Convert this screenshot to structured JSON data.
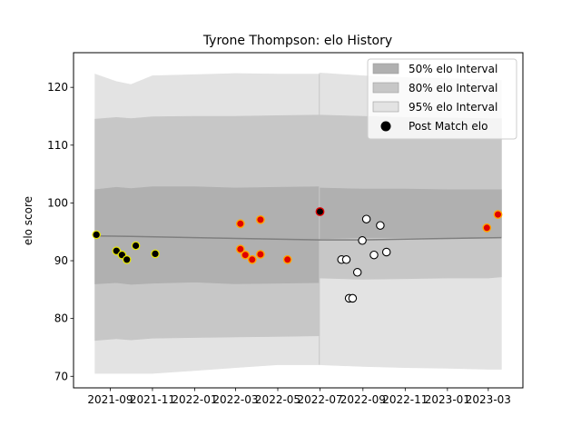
{
  "chart_data": {
    "type": "scatter",
    "title": "Tyrone Thompson: elo History",
    "xlabel": "",
    "ylabel": "elo score",
    "ylim": [
      68,
      126
    ],
    "yticks": [
      70,
      80,
      90,
      100,
      110,
      120
    ],
    "xlim": [
      "2021-07-10",
      "2023-04-20"
    ],
    "xticks": [
      {
        "date": "2021-09-01",
        "label": "2021-09"
      },
      {
        "date": "2021-11-01",
        "label": "2021-11"
      },
      {
        "date": "2022-01-01",
        "label": "2022-01"
      },
      {
        "date": "2022-03-01",
        "label": "2022-03"
      },
      {
        "date": "2022-05-01",
        "label": "2022-05"
      },
      {
        "date": "2022-07-01",
        "label": "2022-07"
      },
      {
        "date": "2022-09-01",
        "label": "2022-09"
      },
      {
        "date": "2022-11-01",
        "label": "2022-11"
      },
      {
        "date": "2023-01-01",
        "label": "2023-01"
      },
      {
        "date": "2023-03-01",
        "label": "2023-03"
      }
    ],
    "legend": {
      "placement": "top-right",
      "entries": [
        {
          "key": "p50",
          "label": "50% elo Interval"
        },
        {
          "key": "p80",
          "label": "80% elo Interval"
        },
        {
          "key": "p95",
          "label": "95% elo Interval"
        },
        {
          "key": "post",
          "label": "Post Match elo"
        }
      ]
    },
    "interval_bands": {
      "split_date": "2022-06-30",
      "before": {
        "dates": [
          "2021-08-10",
          "2021-09-10",
          "2021-10-01",
          "2021-11-01",
          "2022-01-01",
          "2022-03-01",
          "2022-05-01",
          "2022-06-30"
        ],
        "p95_upper": [
          122.3,
          121.0,
          120.5,
          122.0,
          122.2,
          122.4,
          122.3,
          122.3
        ],
        "p95_lower": [
          70.5,
          70.5,
          70.5,
          70.5,
          71.0,
          71.5,
          72.0,
          72.0
        ],
        "p80_upper": [
          114.5,
          114.8,
          114.6,
          114.9,
          115.0,
          115.0,
          115.1,
          115.2
        ],
        "p80_lower": [
          76.2,
          76.5,
          76.3,
          76.6,
          76.7,
          76.8,
          76.9,
          77.0
        ],
        "p50_upper": [
          102.3,
          102.7,
          102.5,
          102.8,
          102.8,
          102.6,
          102.7,
          102.8
        ],
        "p50_lower": [
          86.0,
          86.2,
          85.9,
          86.1,
          86.3,
          86.0,
          86.1,
          86.2
        ]
      },
      "after": {
        "dates": [
          "2022-06-30",
          "2022-09-01",
          "2022-11-01",
          "2023-01-01",
          "2023-03-01",
          "2023-03-20"
        ],
        "p95_upper": [
          122.5,
          122.0,
          121.7,
          121.5,
          121.3,
          121.2
        ],
        "p95_lower": [
          72.0,
          71.7,
          71.5,
          71.4,
          71.2,
          71.2
        ],
        "p80_upper": [
          115.2,
          115.0,
          114.8,
          114.7,
          114.6,
          114.6
        ],
        "p80_lower": [
          87.0,
          86.8,
          86.9,
          87.0,
          87.0,
          87.2
        ],
        "p50_upper": [
          102.6,
          102.4,
          102.4,
          102.3,
          102.3,
          102.3
        ],
        "p50_lower": [
          93.8,
          94.0,
          94.0,
          94.0,
          94.1,
          94.1
        ]
      }
    },
    "mean_line": {
      "dates": [
        "2021-08-10",
        "2021-10-01",
        "2022-01-01",
        "2022-04-01",
        "2022-06-30",
        "2022-09-01",
        "2022-12-01",
        "2023-03-20"
      ],
      "values": [
        94.3,
        94.2,
        94.0,
        93.8,
        93.6,
        93.6,
        93.8,
        94.0
      ]
    },
    "series": [
      {
        "name": "Post Match elo",
        "style": "yellow-edge-black",
        "points": [
          {
            "date": "2021-08-12",
            "value": 94.5
          },
          {
            "date": "2021-09-10",
            "value": 91.7
          },
          {
            "date": "2021-09-18",
            "value": 91.0
          },
          {
            "date": "2021-09-25",
            "value": 90.2
          },
          {
            "date": "2021-10-08",
            "value": 92.6
          },
          {
            "date": "2021-11-05",
            "value": 91.2
          }
        ]
      },
      {
        "name": "Post Match elo",
        "style": "orange-edge-red",
        "points": [
          {
            "date": "2022-03-08",
            "value": 96.4
          },
          {
            "date": "2022-03-08",
            "value": 92.0
          },
          {
            "date": "2022-03-15",
            "value": 91.0
          },
          {
            "date": "2022-03-25",
            "value": 90.2
          },
          {
            "date": "2022-04-06",
            "value": 97.1
          },
          {
            "date": "2022-04-06",
            "value": 91.1
          },
          {
            "date": "2022-05-15",
            "value": 90.2
          },
          {
            "date": "2023-02-27",
            "value": 95.7
          },
          {
            "date": "2023-03-15",
            "value": 98.0
          }
        ]
      },
      {
        "name": "Post Match elo",
        "style": "red-edge-black",
        "points": [
          {
            "date": "2022-07-01",
            "value": 98.5
          }
        ]
      },
      {
        "name": "Post Match elo",
        "style": "hollow",
        "points": [
          {
            "date": "2022-08-01",
            "value": 90.2
          },
          {
            "date": "2022-08-08",
            "value": 90.2
          },
          {
            "date": "2022-08-12",
            "value": 83.5
          },
          {
            "date": "2022-08-17",
            "value": 83.5
          },
          {
            "date": "2022-08-24",
            "value": 88.0
          },
          {
            "date": "2022-08-31",
            "value": 93.5
          },
          {
            "date": "2022-09-06",
            "value": 97.2
          },
          {
            "date": "2022-09-17",
            "value": 91.0
          },
          {
            "date": "2022-09-26",
            "value": 96.1
          },
          {
            "date": "2022-10-05",
            "value": 91.5
          }
        ]
      }
    ]
  }
}
